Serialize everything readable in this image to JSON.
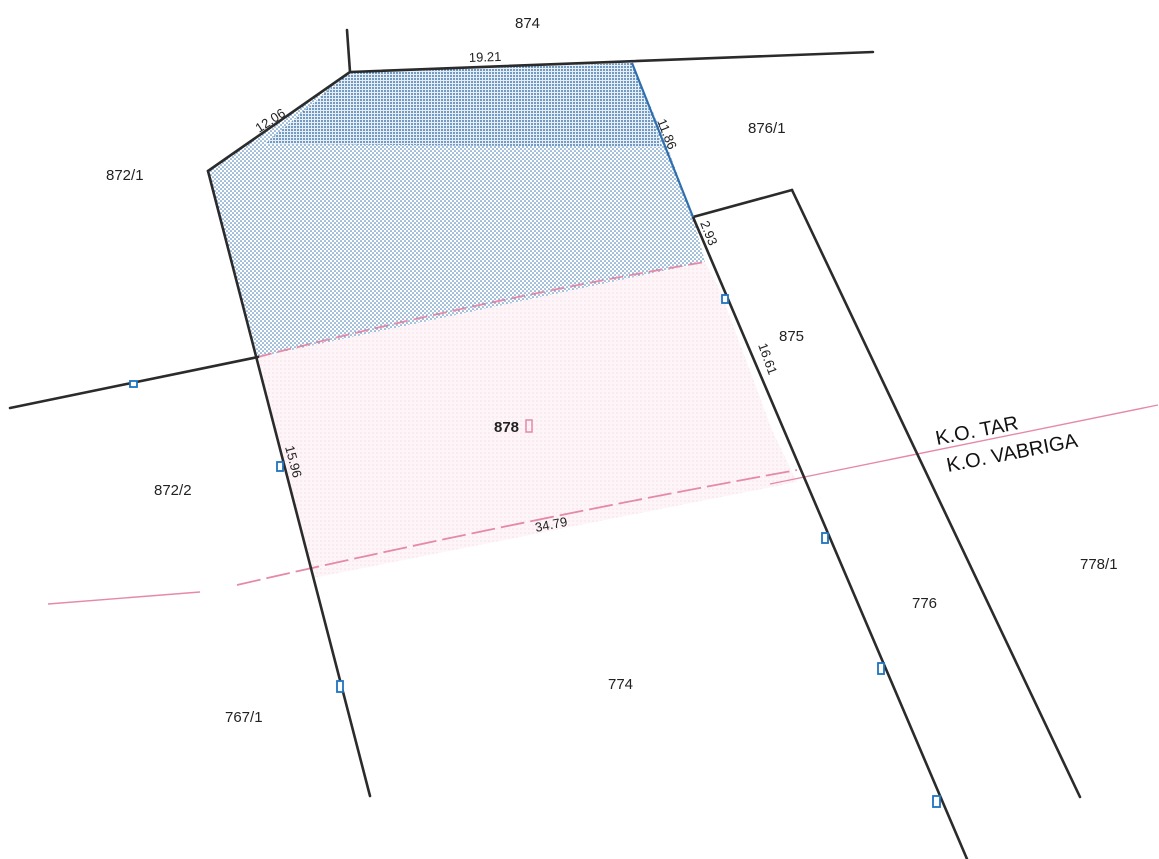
{
  "parcels": {
    "p874": "874",
    "p876_1": "876/1",
    "p872_1": "872/1",
    "p875": "875",
    "p878": "878",
    "p872_2": "872/2",
    "p774": "774",
    "p776": "776",
    "p778_1": "778/1",
    "p767_1": "767/1"
  },
  "dimensions": {
    "top_edge": "19.21",
    "left_diag": "12.06",
    "right_upper": "11.86",
    "right_step": "2.93",
    "right_lower": "16.61",
    "left_lower": "15.96",
    "bottom": "34.79"
  },
  "zones": {
    "upper": "K.O. TAR",
    "lower": "K.O. VABRIGA"
  },
  "colors": {
    "boundary": "#2b2b2b",
    "blue_hatch": "#2f6fae",
    "pink_hatch": "#e6a5bd",
    "zone_line": "#e58aa6",
    "marker": "#1f73c0"
  }
}
